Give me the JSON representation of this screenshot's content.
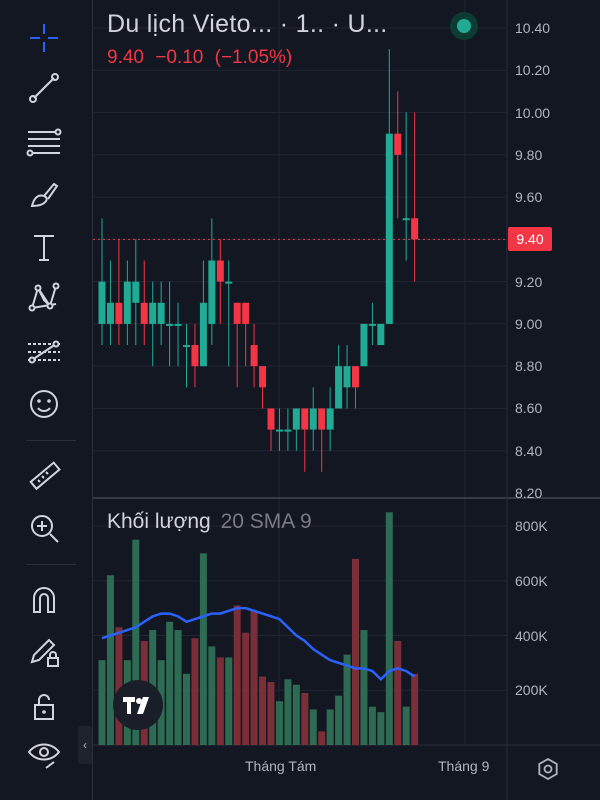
{
  "header": {
    "symbol_title": "Du lịch Vieto... · 1.. · U...",
    "last_price": "9.40",
    "change": "−0.10",
    "change_pct": "(−1.05%)"
  },
  "toolbar": {
    "tools": [
      "crosshair-icon",
      "trend-line-icon",
      "fib-retracement-icon",
      "brush-icon",
      "text-icon",
      "pattern-icon",
      "prediction-icon",
      "emoji-icon",
      "ruler-icon",
      "zoom-in-icon",
      "magnet-icon",
      "lock-drawing-icon",
      "lock-icon",
      "eye-icon"
    ]
  },
  "volume": {
    "label": "Khối lượng",
    "indicator": "20 SMA 9"
  },
  "colors": {
    "up": "#22ab94",
    "down": "#f23645",
    "vol_up": "#2e6b53",
    "vol_down": "#7a2e37",
    "sma": "#2962ff",
    "background": "#131722",
    "grid": "#232632"
  },
  "chart_data": [
    {
      "type": "candlestick",
      "title": "Du lịch Vieto... · 1.. · U...",
      "ylim": [
        8.2,
        10.45
      ],
      "y_ticks": [
        "10.40",
        "10.20",
        "10.00",
        "9.80",
        "9.60",
        "9.40",
        "9.20",
        "9.00",
        "8.80",
        "8.60",
        "8.40",
        "8.20"
      ],
      "x_tick_labels": [
        "Tháng Tám",
        "Tháng 9"
      ],
      "last_price_label": "9.40",
      "candles": [
        {
          "o": 9.0,
          "h": 9.5,
          "c": 9.2,
          "l": 8.9
        },
        {
          "o": 9.0,
          "h": 9.3,
          "c": 9.1,
          "l": 8.9
        },
        {
          "o": 9.1,
          "h": 9.4,
          "c": 9.0,
          "l": 8.9
        },
        {
          "o": 9.0,
          "h": 9.3,
          "c": 9.2,
          "l": 8.9
        },
        {
          "o": 9.1,
          "h": 9.4,
          "c": 9.2,
          "l": 8.9
        },
        {
          "o": 9.1,
          "h": 9.3,
          "c": 9.0,
          "l": 8.9
        },
        {
          "o": 9.0,
          "h": 9.2,
          "c": 9.1,
          "l": 8.8
        },
        {
          "o": 9.0,
          "h": 9.2,
          "c": 9.1,
          "l": 8.9
        },
        {
          "o": 9.0,
          "h": 9.2,
          "c": 9.0,
          "l": 8.8
        },
        {
          "o": 9.0,
          "h": 9.1,
          "c": 9.0,
          "l": 8.8
        },
        {
          "o": 8.9,
          "h": 9.0,
          "c": 8.9,
          "l": 8.7
        },
        {
          "o": 8.9,
          "h": 9.0,
          "c": 8.8,
          "l": 8.7
        },
        {
          "o": 8.8,
          "h": 9.3,
          "c": 9.1,
          "l": 8.8
        },
        {
          "o": 9.0,
          "h": 9.5,
          "c": 9.3,
          "l": 8.9
        },
        {
          "o": 9.3,
          "h": 9.4,
          "c": 9.2,
          "l": 9.0
        },
        {
          "o": 9.2,
          "h": 9.3,
          "c": 9.2,
          "l": 8.8
        },
        {
          "o": 9.1,
          "h": 9.1,
          "c": 9.0,
          "l": 8.7
        },
        {
          "o": 9.1,
          "h": 9.1,
          "c": 9.0,
          "l": 8.8
        },
        {
          "o": 8.9,
          "h": 9.0,
          "c": 8.8,
          "l": 8.7
        },
        {
          "o": 8.8,
          "h": 8.8,
          "c": 8.7,
          "l": 8.6
        },
        {
          "o": 8.6,
          "h": 8.6,
          "c": 8.5,
          "l": 8.4
        },
        {
          "o": 8.5,
          "h": 8.6,
          "c": 8.5,
          "l": 8.4
        },
        {
          "o": 8.5,
          "h": 8.6,
          "c": 8.5,
          "l": 8.4
        },
        {
          "o": 8.5,
          "h": 8.6,
          "c": 8.6,
          "l": 8.4
        },
        {
          "o": 8.6,
          "h": 8.6,
          "c": 8.5,
          "l": 8.3
        },
        {
          "o": 8.5,
          "h": 8.7,
          "c": 8.6,
          "l": 8.4
        },
        {
          "o": 8.6,
          "h": 8.6,
          "c": 8.5,
          "l": 8.3
        },
        {
          "o": 8.5,
          "h": 8.7,
          "c": 8.6,
          "l": 8.4
        },
        {
          "o": 8.6,
          "h": 8.9,
          "c": 8.8,
          "l": 8.6
        },
        {
          "o": 8.7,
          "h": 8.9,
          "c": 8.8,
          "l": 8.6
        },
        {
          "o": 8.8,
          "h": 8.8,
          "c": 8.7,
          "l": 8.6
        },
        {
          "o": 8.8,
          "h": 9.0,
          "c": 9.0,
          "l": 8.8
        },
        {
          "o": 9.0,
          "h": 9.1,
          "c": 9.0,
          "l": 8.9
        },
        {
          "o": 8.9,
          "h": 9.0,
          "c": 9.0,
          "l": 8.9
        },
        {
          "o": 9.0,
          "h": 10.3,
          "c": 9.9,
          "l": 9.0
        },
        {
          "o": 9.9,
          "h": 10.1,
          "c": 9.8,
          "l": 9.5
        },
        {
          "o": 9.5,
          "h": 10.0,
          "c": 9.5,
          "l": 9.3
        },
        {
          "o": 9.5,
          "h": 10.0,
          "c": 9.4,
          "l": 9.2
        }
      ]
    },
    {
      "type": "bar",
      "title": "Khối lượng",
      "ylim": [
        0,
        850000
      ],
      "y_ticks": [
        "800K",
        "600K",
        "400K",
        "200K"
      ],
      "values": [
        310000,
        620000,
        430000,
        310000,
        750000,
        380000,
        420000,
        310000,
        450000,
        420000,
        260000,
        390000,
        700000,
        360000,
        320000,
        320000,
        510000,
        410000,
        490000,
        250000,
        230000,
        160000,
        240000,
        220000,
        190000,
        130000,
        50000,
        130000,
        180000,
        330000,
        680000,
        420000,
        140000,
        120000,
        850000,
        380000,
        140000,
        260000
      ],
      "sma": [
        390000,
        400000,
        410000,
        420000,
        430000,
        450000,
        470000,
        480000,
        480000,
        470000,
        450000,
        460000,
        470000,
        480000,
        480000,
        490000,
        500000,
        500000,
        490000,
        480000,
        470000,
        460000,
        430000,
        400000,
        380000,
        350000,
        330000,
        310000,
        300000,
        290000,
        280000,
        280000,
        270000,
        240000,
        270000,
        280000,
        270000,
        250000
      ]
    }
  ]
}
